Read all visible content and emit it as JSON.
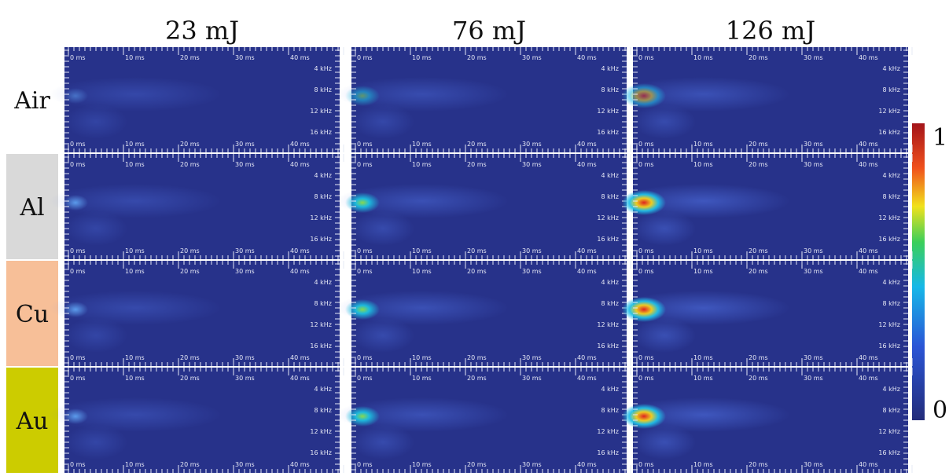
{
  "columns": [
    "23 mJ",
    "76 mJ",
    "126 mJ"
  ],
  "rows": [
    "Air",
    "Al",
    "Cu",
    "Au"
  ],
  "panel_axes": {
    "time_ticks": [
      "0 ms",
      "10 ms",
      "20 ms",
      "30 ms",
      "40 ms"
    ],
    "frequency_ticks": [
      "4 kHz",
      "8 kHz",
      "12 kHz",
      "16 kHz"
    ]
  },
  "colorbar": {
    "max_label": "1",
    "min_label": "0"
  }
}
